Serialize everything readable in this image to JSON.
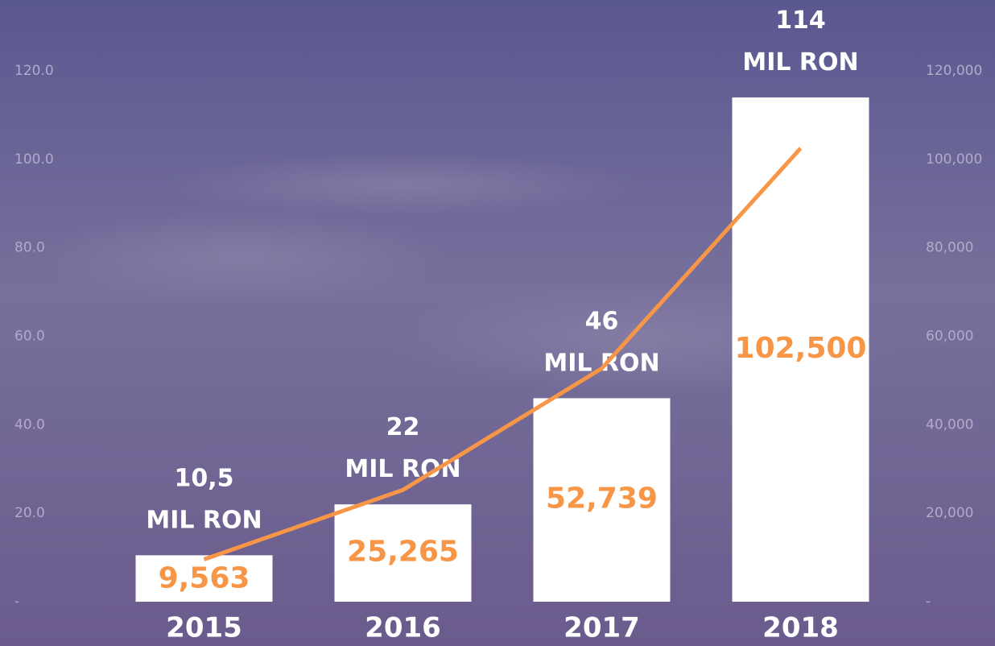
{
  "chart_data": {
    "type": "combo",
    "categories": [
      "2015",
      "2016",
      "2017",
      "2018"
    ],
    "series": [
      {
        "type": "bar",
        "color": "#ffffff",
        "values": [
          10.5,
          22,
          46,
          114
        ],
        "value_labels": [
          "10,5 MIL RON",
          "22 MIL RON",
          "46 MIL RON",
          "114 MIL RON"
        ]
      },
      {
        "type": "line",
        "axis": "y2",
        "color": "#f79646",
        "values": [
          9563,
          25265,
          52739,
          102500
        ],
        "value_labels": [
          "9,563",
          "25,265",
          "52,739",
          "102,500"
        ]
      }
    ],
    "ylim": [
      0,
      120
    ],
    "yticks": [
      {
        "value": 0,
        "label": "-"
      },
      {
        "value": 20,
        "label": "20.0"
      },
      {
        "value": 40,
        "label": "40.0"
      },
      {
        "value": 60,
        "label": "60.0"
      },
      {
        "value": 80,
        "label": "80.0"
      },
      {
        "value": 100,
        "label": "100.0"
      },
      {
        "value": 120,
        "label": "120.0"
      }
    ],
    "y2lim": [
      0,
      120000
    ],
    "y2ticks": [
      {
        "value": 0,
        "label": "-"
      },
      {
        "value": 20000,
        "label": "20,000"
      },
      {
        "value": 40000,
        "label": "40,000"
      },
      {
        "value": 60000,
        "label": "60,000"
      },
      {
        "value": 80000,
        "label": "80,000"
      },
      {
        "value": 100000,
        "label": "100,000"
      },
      {
        "value": 120000,
        "label": "120,000"
      }
    ]
  }
}
